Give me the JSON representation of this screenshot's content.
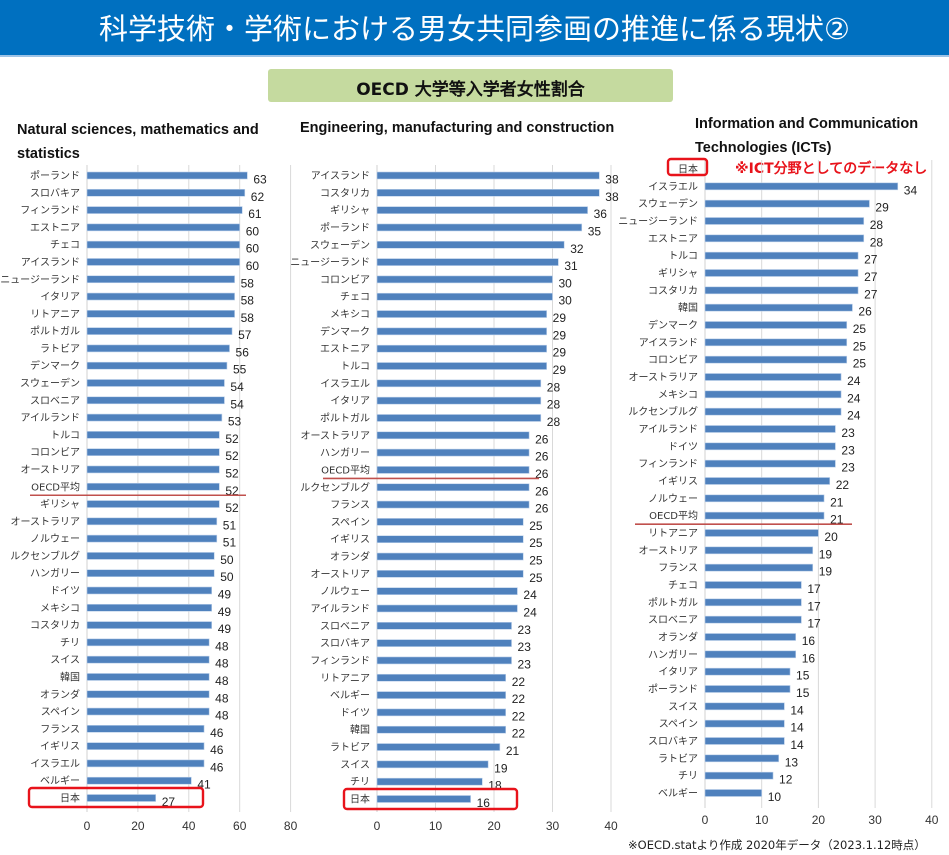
{
  "header": {
    "title": "科学技術・学術における男女共同参画の推進に係る現状②"
  },
  "subtitle": "OECD  大学等入学者女性割合",
  "footnote": "※OECD.statより作成 2020年データ（2023.1.12時点）",
  "colors": {
    "header_bg": "#0070C0",
    "subtitle_bg": "#C5DA9F",
    "bar": "#4F81BD",
    "highlight": "#E8131B",
    "avg_line": "#C0504D"
  },
  "chart_data": [
    {
      "type": "bar",
      "orientation": "horizontal",
      "title": "Natural sciences, mathematics and statistics",
      "title_lines": [
        "Natural sciences, mathematics and",
        "statistics"
      ],
      "xlim": [
        0,
        80
      ],
      "xticks": [
        0,
        20,
        40,
        60,
        80
      ],
      "grid": true,
      "highlight": "日本",
      "average_label": "OECD平均",
      "categories": [
        "ポーランド",
        "スロバキア",
        "フィンランド",
        "エストニア",
        "チェコ",
        "アイスランド",
        "ニュージーランド",
        "イタリア",
        "リトアニア",
        "ポルトガル",
        "ラトビア",
        "デンマーク",
        "スウェーデン",
        "スロベニア",
        "アイルランド",
        "トルコ",
        "コロンビア",
        "オーストリア",
        "OECD平均",
        "ギリシャ",
        "オーストラリア",
        "ノルウェー",
        "ルクセンブルグ",
        "ハンガリー",
        "ドイツ",
        "メキシコ",
        "コスタリカ",
        "チリ",
        "スイス",
        "韓国",
        "オランダ",
        "スペイン",
        "フランス",
        "イギリス",
        "イスラエル",
        "ベルギー",
        "日本"
      ],
      "values": [
        63,
        62,
        61,
        60,
        60,
        60,
        58,
        58,
        58,
        57,
        56,
        55,
        54,
        54,
        53,
        52,
        52,
        52,
        52,
        52,
        51,
        51,
        50,
        50,
        49,
        49,
        49,
        48,
        48,
        48,
        48,
        48,
        46,
        46,
        46,
        41,
        27
      ]
    },
    {
      "type": "bar",
      "orientation": "horizontal",
      "title": "Engineering, manufacturing and construction",
      "title_lines": [
        "Engineering, manufacturing and construction"
      ],
      "xlim": [
        0,
        40
      ],
      "xticks": [
        0,
        10,
        20,
        30,
        40
      ],
      "grid": true,
      "highlight": "日本",
      "average_label": "OECD平均",
      "categories": [
        "アイスランド",
        "コスタリカ",
        "ギリシャ",
        "ポーランド",
        "スウェーデン",
        "ニュージーランド",
        "コロンビア",
        "チェコ",
        "メキシコ",
        "デンマーク",
        "エストニア",
        "トルコ",
        "イスラエル",
        "イタリア",
        "ポルトガル",
        "オーストラリア",
        "ハンガリー",
        "OECD平均",
        "ルクセンブルグ",
        "フランス",
        "スペイン",
        "イギリス",
        "オランダ",
        "オーストリア",
        "ノルウェー",
        "アイルランド",
        "スロベニア",
        "スロバキア",
        "フィンランド",
        "リトアニア",
        "ベルギー",
        "ドイツ",
        "韓国",
        "ラトビア",
        "スイス",
        "チリ",
        "日本"
      ],
      "values": [
        38,
        38,
        36,
        35,
        32,
        31,
        30,
        30,
        29,
        29,
        29,
        29,
        28,
        28,
        28,
        26,
        26,
        26,
        26,
        26,
        25,
        25,
        25,
        25,
        24,
        24,
        23,
        23,
        23,
        22,
        22,
        22,
        22,
        21,
        19,
        18,
        16
      ]
    },
    {
      "type": "bar",
      "orientation": "horizontal",
      "title": "Information and Communication Technologies (ICTs)",
      "title_lines": [
        "Information and Communication",
        "Technologies (ICTs)"
      ],
      "xlim": [
        0,
        40
      ],
      "xticks": [
        0,
        10,
        20,
        30,
        40
      ],
      "grid": true,
      "highlight": "日本",
      "average_label": "OECD平均",
      "no_data_category": "日本",
      "no_data_note": "※ICT分野としてのデータなし",
      "categories": [
        "日本",
        "イスラエル",
        "スウェーデン",
        "ニュージーランド",
        "エストニア",
        "トルコ",
        "ギリシャ",
        "コスタリカ",
        "韓国",
        "デンマーク",
        "アイスランド",
        "コロンビア",
        "オーストラリア",
        "メキシコ",
        "ルクセンブルグ",
        "アイルランド",
        "ドイツ",
        "フィンランド",
        "イギリス",
        "ノルウェー",
        "OECD平均",
        "リトアニア",
        "オーストリア",
        "フランス",
        "チェコ",
        "ポルトガル",
        "スロベニア",
        "オランダ",
        "ハンガリー",
        "イタリア",
        "ポーランド",
        "スイス",
        "スペイン",
        "スロバキア",
        "ラトビア",
        "チリ",
        "ベルギー"
      ],
      "values": [
        null,
        34,
        29,
        28,
        28,
        27,
        27,
        27,
        26,
        25,
        25,
        25,
        24,
        24,
        24,
        23,
        23,
        23,
        22,
        21,
        21,
        20,
        19,
        19,
        17,
        17,
        17,
        16,
        16,
        15,
        15,
        14,
        14,
        14,
        13,
        12,
        10
      ]
    }
  ]
}
